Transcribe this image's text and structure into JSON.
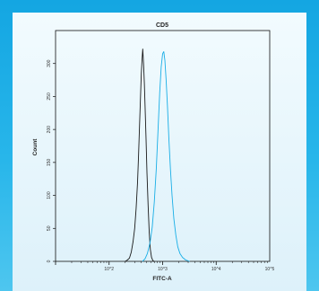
{
  "chart_data": {
    "type": "line",
    "title": "CD5",
    "xlabel": "FITC-A",
    "ylabel": "Count",
    "x_scale": "log",
    "xlim": [
      10,
      100000
    ],
    "ylim": [
      0,
      350
    ],
    "x_tick_labels": [
      "10^2",
      "10^3",
      "10^4",
      "10^5"
    ],
    "y_tick_labels": [
      "0",
      "50",
      "100",
      "150",
      "200",
      "250",
      "300"
    ],
    "y_ticks": [
      0,
      50,
      100,
      150,
      200,
      250,
      300
    ],
    "grid": false,
    "series": [
      {
        "color": "#1a1a1a",
        "points": [
          [
            200,
            0
          ],
          [
            220,
            2
          ],
          [
            240,
            5
          ],
          [
            260,
            14
          ],
          [
            280,
            30
          ],
          [
            300,
            50
          ],
          [
            320,
            80
          ],
          [
            340,
            120
          ],
          [
            355,
            160
          ],
          [
            370,
            205
          ],
          [
            385,
            245
          ],
          [
            400,
            285
          ],
          [
            415,
            310
          ],
          [
            425,
            322
          ],
          [
            440,
            300
          ],
          [
            455,
            270
          ],
          [
            470,
            235
          ],
          [
            490,
            185
          ],
          [
            510,
            135
          ],
          [
            535,
            85
          ],
          [
            560,
            45
          ],
          [
            590,
            18
          ],
          [
            620,
            6
          ],
          [
            660,
            1
          ],
          [
            700,
            0
          ]
        ]
      },
      {
        "color": "#19aee6",
        "points": [
          [
            420,
            0
          ],
          [
            470,
            4
          ],
          [
            520,
            12
          ],
          [
            580,
            28
          ],
          [
            640,
            52
          ],
          [
            700,
            90
          ],
          [
            760,
            140
          ],
          [
            820,
            200
          ],
          [
            880,
            255
          ],
          [
            940,
            295
          ],
          [
            1000,
            315
          ],
          [
            1050,
            318
          ],
          [
            1100,
            305
          ],
          [
            1160,
            275
          ],
          [
            1230,
            235
          ],
          [
            1310,
            185
          ],
          [
            1400,
            140
          ],
          [
            1500,
            100
          ],
          [
            1620,
            65
          ],
          [
            1760,
            40
          ],
          [
            1920,
            22
          ],
          [
            2100,
            12
          ],
          [
            2350,
            6
          ],
          [
            2700,
            2
          ],
          [
            3200,
            0
          ]
        ]
      }
    ]
  }
}
